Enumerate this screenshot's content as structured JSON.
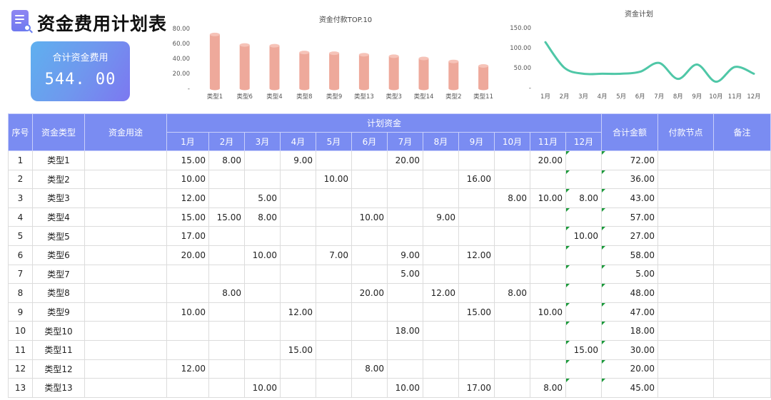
{
  "header": {
    "title": "资金费用计划表",
    "doc_icon": "document-search-icon"
  },
  "summary": {
    "label": "合计资金费用",
    "value": "544. 00"
  },
  "chart_data": [
    {
      "type": "bar",
      "title": "资金付款TOP.10",
      "categories": [
        "类型1",
        "类型6",
        "类型4",
        "类型8",
        "类型9",
        "类型13",
        "类型3",
        "类型14",
        "类型2",
        "类型11"
      ],
      "values": [
        72,
        58,
        57,
        48,
        47,
        45,
        43,
        40,
        36,
        30
      ],
      "yticks": [
        "80.00",
        "60.00",
        "40.00",
        "20.00",
        "-"
      ],
      "ylim": [
        0,
        80
      ],
      "color": "#eea99b"
    },
    {
      "type": "line",
      "title": "资金计划",
      "categories": [
        "1月",
        "2月",
        "3月",
        "4月",
        "5月",
        "6月",
        "7月",
        "8月",
        "9月",
        "10月",
        "11月",
        "12月"
      ],
      "values": [
        114,
        50,
        35,
        35,
        35,
        40,
        62,
        22,
        58,
        15,
        52,
        35
      ],
      "yticks": [
        "150.00",
        "100.00",
        "50.00",
        "-"
      ],
      "ylim": [
        0,
        150
      ],
      "color": "#4fc7a7"
    }
  ],
  "table": {
    "headers": {
      "seq": "序号",
      "type": "资金类型",
      "usage": "资金用途",
      "plan": "计划资金",
      "months": [
        "1月",
        "2月",
        "3月",
        "4月",
        "5月",
        "6月",
        "7月",
        "8月",
        "9月",
        "10月",
        "11月",
        "12月"
      ],
      "total": "合计金额",
      "node": "付款节点",
      "remark": "备注"
    },
    "rows": [
      {
        "seq": "1",
        "type": "类型1",
        "m": [
          "15.00",
          "8.00",
          "",
          "9.00",
          "",
          "",
          "20.00",
          "",
          "",
          "",
          "20.00",
          ""
        ],
        "total": "72.00"
      },
      {
        "seq": "2",
        "type": "类型2",
        "m": [
          "10.00",
          "",
          "",
          "",
          "10.00",
          "",
          "",
          "",
          "16.00",
          "",
          "",
          ""
        ],
        "total": "36.00"
      },
      {
        "seq": "3",
        "type": "类型3",
        "m": [
          "12.00",
          "",
          "5.00",
          "",
          "",
          "",
          "",
          "",
          "",
          "8.00",
          "10.00",
          "8.00"
        ],
        "total": "43.00"
      },
      {
        "seq": "4",
        "type": "类型4",
        "m": [
          "15.00",
          "15.00",
          "8.00",
          "",
          "",
          "10.00",
          "",
          "9.00",
          "",
          "",
          "",
          ""
        ],
        "total": "57.00"
      },
      {
        "seq": "5",
        "type": "类型5",
        "m": [
          "17.00",
          "",
          "",
          "",
          "",
          "",
          "",
          "",
          "",
          "",
          "",
          "10.00"
        ],
        "total": "27.00"
      },
      {
        "seq": "6",
        "type": "类型6",
        "m": [
          "20.00",
          "",
          "10.00",
          "",
          "7.00",
          "",
          "9.00",
          "",
          "12.00",
          "",
          "",
          ""
        ],
        "total": "58.00"
      },
      {
        "seq": "7",
        "type": "类型7",
        "m": [
          "",
          "",
          "",
          "",
          "",
          "",
          "5.00",
          "",
          "",
          "",
          "",
          ""
        ],
        "total": "5.00"
      },
      {
        "seq": "8",
        "type": "类型8",
        "m": [
          "",
          "8.00",
          "",
          "",
          "",
          "20.00",
          "",
          "12.00",
          "",
          "8.00",
          "",
          ""
        ],
        "total": "48.00"
      },
      {
        "seq": "9",
        "type": "类型9",
        "m": [
          "10.00",
          "",
          "",
          "12.00",
          "",
          "",
          "",
          "",
          "15.00",
          "",
          "10.00",
          ""
        ],
        "total": "47.00"
      },
      {
        "seq": "10",
        "type": "类型10",
        "m": [
          "",
          "",
          "",
          "",
          "",
          "",
          "18.00",
          "",
          "",
          "",
          "",
          ""
        ],
        "total": "18.00"
      },
      {
        "seq": "11",
        "type": "类型11",
        "m": [
          "",
          "",
          "",
          "15.00",
          "",
          "",
          "",
          "",
          "",
          "",
          "",
          "15.00"
        ],
        "total": "30.00"
      },
      {
        "seq": "12",
        "type": "类型12",
        "m": [
          "12.00",
          "",
          "",
          "",
          "",
          "8.00",
          "",
          "",
          "",
          "",
          "",
          ""
        ],
        "total": "20.00"
      },
      {
        "seq": "13",
        "type": "类型13",
        "m": [
          "",
          "",
          "10.00",
          "",
          "",
          "",
          "10.00",
          "",
          "17.00",
          "",
          "8.00",
          ""
        ],
        "total": "45.00"
      }
    ]
  }
}
